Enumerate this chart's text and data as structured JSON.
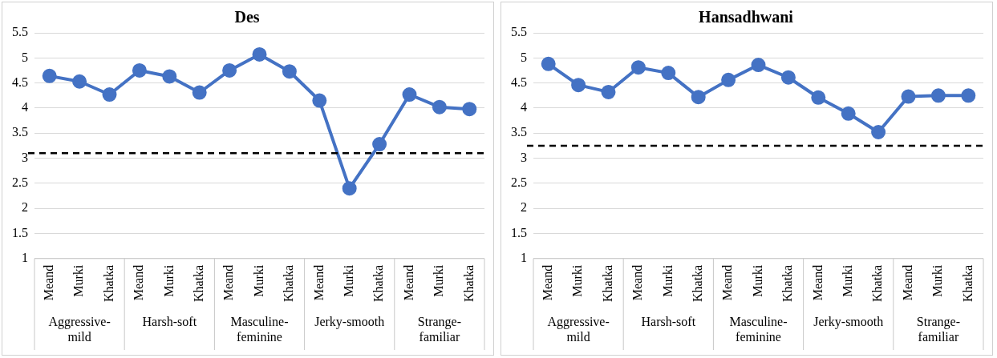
{
  "chart_data": [
    {
      "type": "line",
      "title": "Des",
      "categories": [
        "Meand",
        "Murki",
        "Khatka",
        "Meand",
        "Murki",
        "Khatka",
        "Meand",
        "Murki",
        "Khatka",
        "Meand",
        "Murki",
        "Khatka",
        "Meand",
        "Murki",
        "Khatka"
      ],
      "series": [
        {
          "color": "#4472c4",
          "values": [
            4.64,
            4.53,
            4.27,
            4.75,
            4.63,
            4.31,
            4.75,
            5.07,
            4.73,
            4.15,
            2.4,
            3.28,
            4.27,
            4.02,
            3.98
          ]
        }
      ],
      "annotations": [
        "Aggressive-mild",
        "Harsh-soft",
        "Masculine-feminine",
        "Jerky-smooth",
        "Strange-familiar"
      ],
      "ref_lines": [
        {
          "axis": "y",
          "value": 3.1,
          "color": "#000000",
          "line_style": "dashed"
        }
      ],
      "ylim": [
        1,
        5.5
      ],
      "yticks": [
        1,
        1.5,
        2,
        2.5,
        3,
        3.5,
        4,
        4.5,
        5,
        5.5
      ],
      "grid": "y",
      "legend": false,
      "marker": "circle",
      "line_style": "solid"
    },
    {
      "type": "line",
      "title": "Hansadhwani",
      "categories": [
        "Meand",
        "Murki",
        "Khatka",
        "Meand",
        "Murki",
        "Khatka",
        "Meand",
        "Murki",
        "Khatka",
        "Meand",
        "Murki",
        "Khatka",
        "Meand",
        "Murki",
        "Khatka"
      ],
      "series": [
        {
          "color": "#4472c4",
          "values": [
            4.88,
            4.46,
            4.32,
            4.81,
            4.7,
            4.22,
            4.56,
            4.86,
            4.61,
            4.21,
            3.89,
            3.52,
            4.23,
            4.25,
            4.25
          ]
        }
      ],
      "annotations": [
        "Aggressive-mild",
        "Harsh-soft",
        "Masculine-feminine",
        "Jerky-smooth",
        "Strange-familiar"
      ],
      "ref_lines": [
        {
          "axis": "y",
          "value": 3.25,
          "color": "#000000",
          "line_style": "dashed"
        }
      ],
      "ylim": [
        1,
        5.5
      ],
      "yticks": [
        1,
        1.5,
        2,
        2.5,
        3,
        3.5,
        4,
        4.5,
        5,
        5.5
      ],
      "grid": "y",
      "legend": false,
      "marker": "circle",
      "line_style": "solid"
    }
  ]
}
